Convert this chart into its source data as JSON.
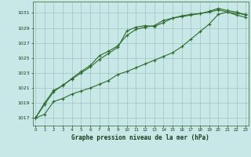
{
  "title": "Graphe pression niveau de la mer (hPa)",
  "background_color": "#c8e8e8",
  "plot_background_color": "#c8e8e8",
  "grid_color": "#a0c4c4",
  "line_color": "#2d6b2d",
  "x_labels": [
    "0",
    "1",
    "2",
    "3",
    "4",
    "5",
    "6",
    "7",
    "8",
    "9",
    "10",
    "11",
    "12",
    "13",
    "14",
    "15",
    "16",
    "17",
    "18",
    "19",
    "20",
    "21",
    "22",
    "23"
  ],
  "y_ticks": [
    1017,
    1019,
    1021,
    1023,
    1025,
    1027,
    1029,
    1031
  ],
  "ylim": [
    1016.0,
    1032.5
  ],
  "xlim": [
    -0.3,
    23.3
  ],
  "series1": [
    1017.0,
    1017.5,
    1019.2,
    1019.6,
    1020.2,
    1020.6,
    1021.0,
    1021.5,
    1022.0,
    1022.8,
    1023.2,
    1023.7,
    1024.2,
    1024.7,
    1025.2,
    1025.7,
    1026.5,
    1027.5,
    1028.5,
    1029.5,
    1030.8,
    1031.1,
    1030.9,
    1030.8
  ],
  "series2": [
    1017.0,
    1018.8,
    1020.5,
    1021.4,
    1022.2,
    1023.0,
    1023.8,
    1024.8,
    1025.6,
    1026.4,
    1028.6,
    1029.1,
    1029.3,
    1029.2,
    1029.7,
    1030.3,
    1030.5,
    1030.7,
    1030.9,
    1031.2,
    1031.6,
    1031.3,
    1031.1,
    1030.7
  ],
  "series3": [
    1017.0,
    1019.0,
    1020.7,
    1021.3,
    1022.3,
    1023.2,
    1024.0,
    1025.3,
    1025.9,
    1026.6,
    1028.0,
    1028.8,
    1029.1,
    1029.3,
    1030.0,
    1030.3,
    1030.6,
    1030.8,
    1030.9,
    1031.1,
    1031.4,
    1031.1,
    1030.7,
    1030.4
  ]
}
